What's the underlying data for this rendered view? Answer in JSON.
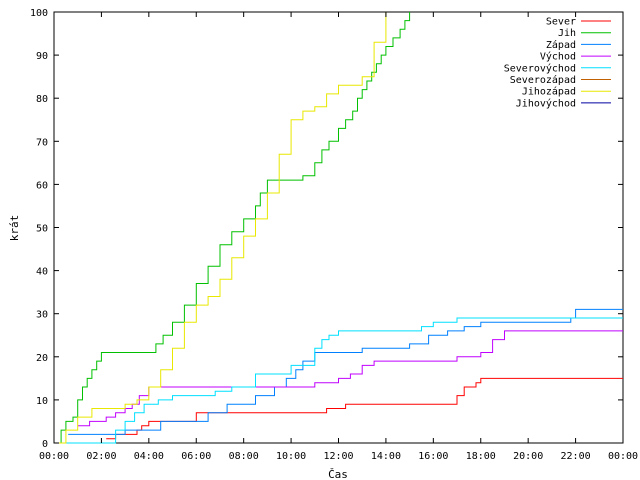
{
  "chart_data": {
    "type": "line",
    "xlabel": "Čas",
    "ylabel": "krát",
    "xlim": [
      0,
      24
    ],
    "ylim": [
      0,
      100
    ],
    "x_ticks": [
      0,
      2,
      4,
      6,
      8,
      10,
      12,
      14,
      16,
      18,
      20,
      22,
      24
    ],
    "x_tick_labels": [
      "00:00",
      "02:00",
      "04:00",
      "06:00",
      "08:00",
      "10:00",
      "12:00",
      "14:00",
      "16:00",
      "18:00",
      "20:00",
      "22:00",
      "00:00"
    ],
    "y_ticks": [
      0,
      10,
      20,
      30,
      40,
      50,
      60,
      70,
      80,
      90,
      100
    ],
    "grid": false,
    "legend_position": "top-right",
    "step": true,
    "series": [
      {
        "name": "Sever",
        "color": "#ff0000",
        "x": [
          2.2,
          2.6,
          3.5,
          3.7,
          4.0,
          6.0,
          7.0,
          11.5,
          12.3,
          16.0,
          17.0,
          17.3,
          17.8,
          18.0,
          24.0
        ],
        "y": [
          1,
          2,
          3,
          4,
          5,
          7,
          7,
          8,
          9,
          9,
          11,
          13,
          14,
          15,
          15
        ]
      },
      {
        "name": "Jih",
        "color": "#00c000",
        "x": [
          0.0,
          0.3,
          0.5,
          0.8,
          1.0,
          1.2,
          1.4,
          1.6,
          1.8,
          2.0,
          4.0,
          4.3,
          4.6,
          5.0,
          5.5,
          6.0,
          6.5,
          7.0,
          7.5,
          8.0,
          8.5,
          8.7,
          9.0,
          10.5,
          11.0,
          11.3,
          11.6,
          12.0,
          12.3,
          12.6,
          12.8,
          13.0,
          13.2,
          13.4,
          13.6,
          13.8,
          14.0,
          14.3,
          14.6,
          14.8,
          15.0
        ],
        "y": [
          0,
          3,
          5,
          6,
          10,
          13,
          15,
          17,
          19,
          21,
          21,
          23,
          25,
          28,
          32,
          37,
          41,
          46,
          49,
          52,
          55,
          58,
          61,
          62,
          65,
          68,
          70,
          73,
          75,
          77,
          80,
          82,
          84,
          86,
          88,
          90,
          92,
          94,
          96,
          98,
          100
        ]
      },
      {
        "name": "Západ",
        "color": "#0080ff",
        "x": [
          0.6,
          1.0,
          2.0,
          3.0,
          4.5,
          6.5,
          7.3,
          8.5,
          9.3,
          9.8,
          10.2,
          10.5,
          11.0,
          12.0,
          13.0,
          15.0,
          15.8,
          16.6,
          17.3,
          18.0,
          20.0,
          21.0,
          21.8,
          22.0,
          24.0
        ],
        "y": [
          2,
          2,
          2,
          3,
          5,
          7,
          9,
          11,
          13,
          15,
          17,
          19,
          21,
          21,
          22,
          23,
          25,
          26,
          27,
          28,
          28,
          28,
          29,
          31,
          31
        ]
      },
      {
        "name": "Východ",
        "color": "#c000ff",
        "x": [
          1.0,
          1.5,
          2.2,
          2.6,
          3.0,
          3.3,
          3.6,
          4.0,
          6.0,
          8.0,
          9.5,
          11.0,
          12.0,
          12.5,
          13.0,
          13.5,
          16.0,
          17.0,
          18.0,
          18.5,
          19.0,
          21.2,
          22.0,
          24.0
        ],
        "y": [
          4,
          5,
          6,
          7,
          8,
          9,
          11,
          13,
          13,
          13,
          13,
          14,
          15,
          16,
          18,
          19,
          19,
          20,
          21,
          24,
          26,
          26,
          26,
          26
        ]
      },
      {
        "name": "Severovýchod",
        "color": "#00e0ff",
        "x": [
          0.3,
          2.6,
          3.0,
          3.4,
          3.8,
          4.4,
          5.0,
          6.0,
          6.8,
          7.5,
          8.5,
          10.0,
          11.0,
          11.3,
          11.6,
          12.0,
          14.5,
          15.0,
          15.5,
          16.0,
          16.5,
          17.0,
          20.0,
          24.0
        ],
        "y": [
          0,
          3,
          5,
          7,
          9,
          10,
          11,
          11,
          12,
          13,
          16,
          18,
          22,
          24,
          25,
          26,
          26,
          26,
          27,
          28,
          28,
          29,
          29,
          29
        ]
      },
      {
        "name": "Severozápad",
        "color": "#c06000",
        "x": [],
        "y": []
      },
      {
        "name": "Jihozápad",
        "color": "#e8e800",
        "x": [
          0.0,
          0.5,
          1.0,
          1.6,
          2.5,
          3.0,
          3.5,
          4.0,
          4.5,
          5.0,
          5.5,
          6.0,
          6.5,
          7.0,
          7.5,
          8.0,
          8.5,
          9.0,
          9.5,
          10.0,
          10.5,
          11.0,
          11.5,
          12.0,
          13.0,
          13.5,
          14.0
        ],
        "y": [
          0,
          3,
          6,
          8,
          8,
          9,
          10,
          13,
          17,
          22,
          28,
          32,
          34,
          38,
          43,
          48,
          52,
          58,
          67,
          75,
          77,
          78,
          81,
          83,
          85,
          93,
          100
        ]
      },
      {
        "name": "Jihovýchod",
        "color": "#0000a0",
        "x": [],
        "y": []
      }
    ]
  }
}
